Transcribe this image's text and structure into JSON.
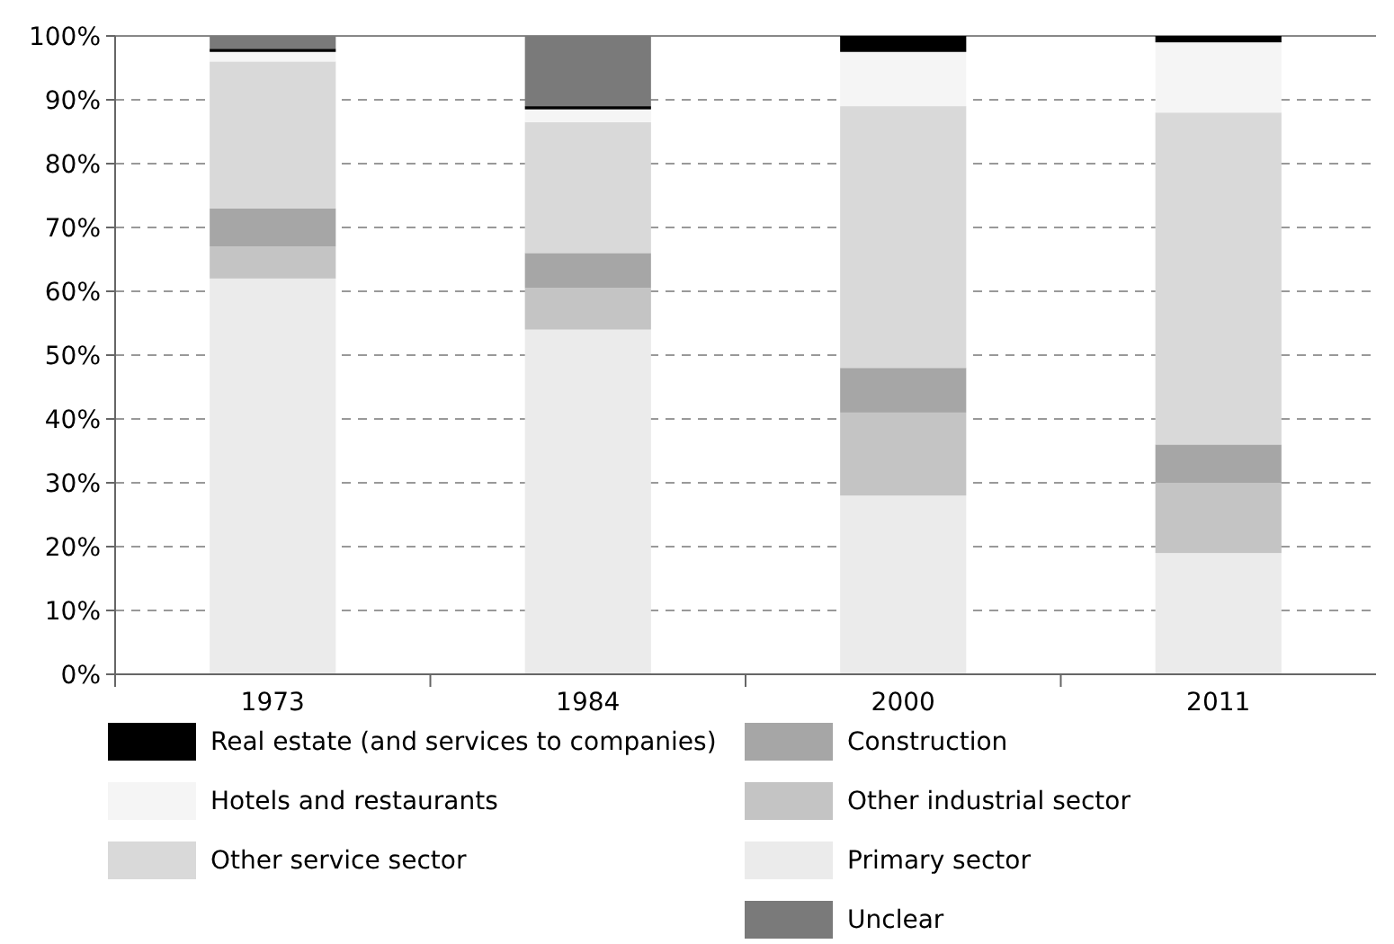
{
  "chart_data": {
    "type": "bar",
    "stacked": true,
    "categories": [
      "1973",
      "1984",
      "2000",
      "2011"
    ],
    "series": [
      {
        "name": "Primary sector",
        "color": "#ebebeb",
        "values": [
          62,
          54,
          28,
          19
        ]
      },
      {
        "name": "Other industrial sector",
        "color": "#c4c4c4",
        "values": [
          5,
          6.5,
          13,
          11
        ]
      },
      {
        "name": "Construction",
        "color": "#a6a6a6",
        "values": [
          6,
          5.5,
          7,
          6
        ]
      },
      {
        "name": "Other service sector",
        "color": "#d9d9d9",
        "values": [
          23,
          20.5,
          41,
          52
        ]
      },
      {
        "name": "Hotels and restaurants",
        "color": "#f5f5f5",
        "values": [
          1.5,
          2,
          8.5,
          11
        ]
      },
      {
        "name": "Real estate (and services to companies)",
        "color": "#000000",
        "values": [
          0.5,
          0.5,
          2.5,
          1
        ]
      },
      {
        "name": "Unclear",
        "color": "#7a7a7a",
        "values": [
          2,
          11,
          null,
          null
        ]
      }
    ],
    "ylim": [
      0,
      100
    ],
    "yticks": [
      {
        "value": 0,
        "label": "0%"
      },
      {
        "value": 10,
        "label": "10%"
      },
      {
        "value": 20,
        "label": "20%"
      },
      {
        "value": 30,
        "label": "30%"
      },
      {
        "value": 40,
        "label": "40%"
      },
      {
        "value": 50,
        "label": "50%"
      },
      {
        "value": 60,
        "label": "60%"
      },
      {
        "value": 70,
        "label": "70%"
      },
      {
        "value": 80,
        "label": "80%"
      },
      {
        "value": 90,
        "label": "90%"
      },
      {
        "value": 100,
        "label": "100%"
      }
    ],
    "grid": "y",
    "legend": "bottom"
  }
}
